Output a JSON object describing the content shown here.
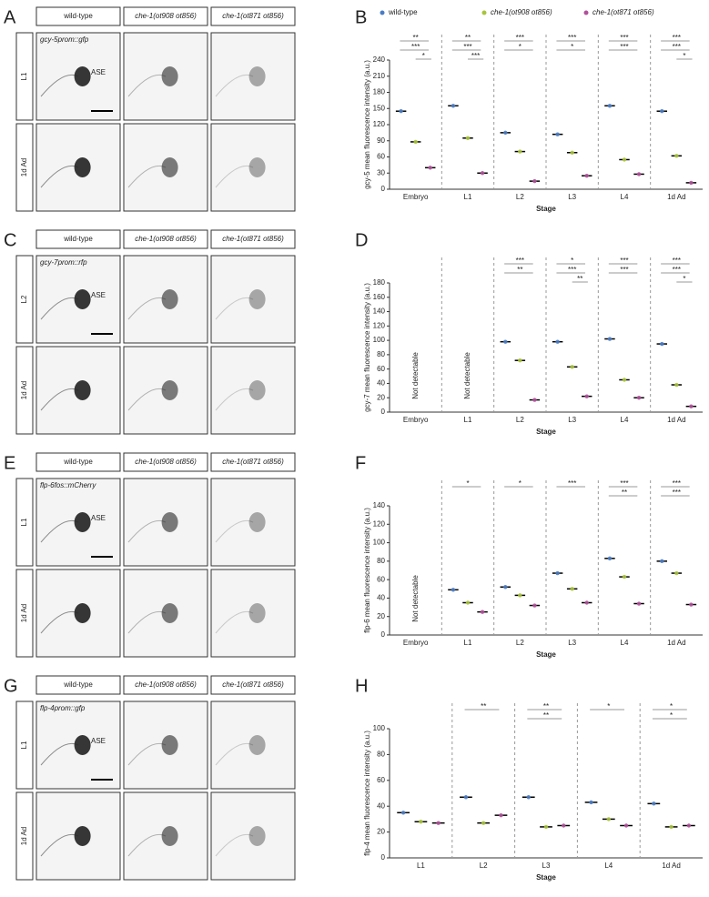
{
  "panels": [
    {
      "letter": "A",
      "reporter": "gcy-5prom::gfp",
      "columns": [
        "wild-type",
        "che-1(ot908 ot856)",
        "che-1(ot871 ot856)"
      ],
      "rows": [
        "L1",
        "1d Ad"
      ],
      "cell_label": "ASE"
    },
    {
      "letter": "C",
      "reporter": "gcy-7prom::rfp",
      "columns": [
        "wild-type",
        "che-1(ot908 ot856)",
        "che-1(ot871 ot856)"
      ],
      "rows": [
        "L2",
        "1d Ad"
      ],
      "cell_label": "ASE"
    },
    {
      "letter": "E",
      "reporter": "flp-6fos::mCherry",
      "columns": [
        "wild-type",
        "che-1(ot908 ot856)",
        "che-1(ot871 ot856)"
      ],
      "rows": [
        "L1",
        "1d Ad"
      ],
      "cell_label": "ASE"
    },
    {
      "letter": "G",
      "reporter": "flp-4prom::gfp",
      "columns": [
        "wild-type",
        "che-1(ot908 ot856)",
        "che-1(ot871 ot856)"
      ],
      "rows": [
        "L1",
        "1d Ad"
      ],
      "cell_label": "ASE"
    }
  ],
  "chart_data": [
    {
      "type": "dot",
      "panel": "B",
      "y_label": "gcy-5 mean fluorescence intensity (a.u.)",
      "x_label": "Stage",
      "legend": true,
      "categories": [
        "Embryo",
        "L1",
        "L2",
        "L3",
        "L4",
        "1d Ad"
      ],
      "series": [
        {
          "name": "wild-type",
          "color": "#4a7cc4",
          "values": [
            145,
            155,
            105,
            102,
            155,
            145
          ]
        },
        {
          "name": "che-1(ot908 ot856)",
          "color": "#a8c43a",
          "values": [
            88,
            95,
            70,
            68,
            55,
            62
          ]
        },
        {
          "name": "che-1(ot871 ot856)",
          "color": "#b0509a",
          "values": [
            40,
            30,
            15,
            25,
            28,
            12
          ]
        }
      ],
      "significance": [
        [
          "**",
          "***",
          "*"
        ],
        [
          "**",
          "***",
          "***"
        ],
        [
          "***",
          "*"
        ],
        [
          "***",
          "*"
        ],
        [
          "***",
          "***"
        ],
        [
          "***",
          "***",
          "*"
        ]
      ],
      "ylim": [
        0,
        240
      ],
      "yticks": [
        0,
        30,
        60,
        90,
        120,
        150,
        180,
        210,
        240
      ]
    },
    {
      "type": "dot",
      "panel": "D",
      "y_label": "gcy-7 mean fluorescence intensity (a.u.)",
      "x_label": "Stage",
      "legend": false,
      "na_label": "Not detectable",
      "categories": [
        "Embryo",
        "L1",
        "L2",
        "L3",
        "L4",
        "1d Ad"
      ],
      "series": [
        {
          "name": "wild-type",
          "color": "#4a7cc4",
          "values": [
            null,
            null,
            98,
            98,
            102,
            95
          ]
        },
        {
          "name": "che-1(ot908 ot856)",
          "color": "#a8c43a",
          "values": [
            null,
            null,
            72,
            63,
            45,
            38
          ]
        },
        {
          "name": "che-1(ot871 ot856)",
          "color": "#b0509a",
          "values": [
            null,
            null,
            17,
            22,
            20,
            8
          ]
        }
      ],
      "significance": [
        [],
        [],
        [
          "***",
          "**"
        ],
        [
          "*",
          "***",
          "**"
        ],
        [
          "***",
          "***"
        ],
        [
          "***",
          "***",
          "*"
        ]
      ],
      "ylim": [
        0,
        180
      ],
      "yticks": [
        0,
        20,
        40,
        60,
        80,
        100,
        120,
        140,
        160,
        180
      ]
    },
    {
      "type": "dot",
      "panel": "F",
      "y_label": "flp-6 mean fluorescence intensity (a.u.)",
      "x_label": "Stage",
      "legend": false,
      "na_label": "Not detectable",
      "categories": [
        "Embryo",
        "L1",
        "L2",
        "L3",
        "L4",
        "1d Ad"
      ],
      "series": [
        {
          "name": "wild-type",
          "color": "#4a7cc4",
          "values": [
            null,
            49,
            52,
            67,
            83,
            80
          ]
        },
        {
          "name": "che-1(ot908 ot856)",
          "color": "#a8c43a",
          "values": [
            null,
            35,
            43,
            50,
            63,
            67
          ]
        },
        {
          "name": "che-1(ot871 ot856)",
          "color": "#b0509a",
          "values": [
            null,
            25,
            32,
            35,
            34,
            33
          ]
        }
      ],
      "significance": [
        [],
        [
          "*"
        ],
        [
          "*"
        ],
        [
          "***"
        ],
        [
          "***",
          "**"
        ],
        [
          "***",
          "***"
        ]
      ],
      "ylim": [
        0,
        140
      ],
      "yticks": [
        0,
        20,
        40,
        60,
        80,
        100,
        120,
        140
      ]
    },
    {
      "type": "dot",
      "panel": "H",
      "y_label": "flp-4 mean fluorescence intensity (a.u.)",
      "x_label": "Stage",
      "legend": false,
      "categories": [
        "L1",
        "L2",
        "L3",
        "L4",
        "1d Ad"
      ],
      "series": [
        {
          "name": "wild-type",
          "color": "#4a7cc4",
          "values": [
            35,
            47,
            47,
            43,
            42
          ]
        },
        {
          "name": "che-1(ot908 ot856)",
          "color": "#a8c43a",
          "values": [
            28,
            27,
            24,
            30,
            24
          ]
        },
        {
          "name": "che-1(ot871 ot856)",
          "color": "#b0509a",
          "values": [
            27,
            33,
            25,
            25,
            25
          ]
        }
      ],
      "significance": [
        [],
        [
          "**"
        ],
        [
          "**",
          "**"
        ],
        [
          "*"
        ],
        [
          "*",
          "*"
        ]
      ],
      "ylim": [
        0,
        100
      ],
      "yticks": [
        0,
        20,
        40,
        60,
        80,
        100
      ]
    }
  ]
}
